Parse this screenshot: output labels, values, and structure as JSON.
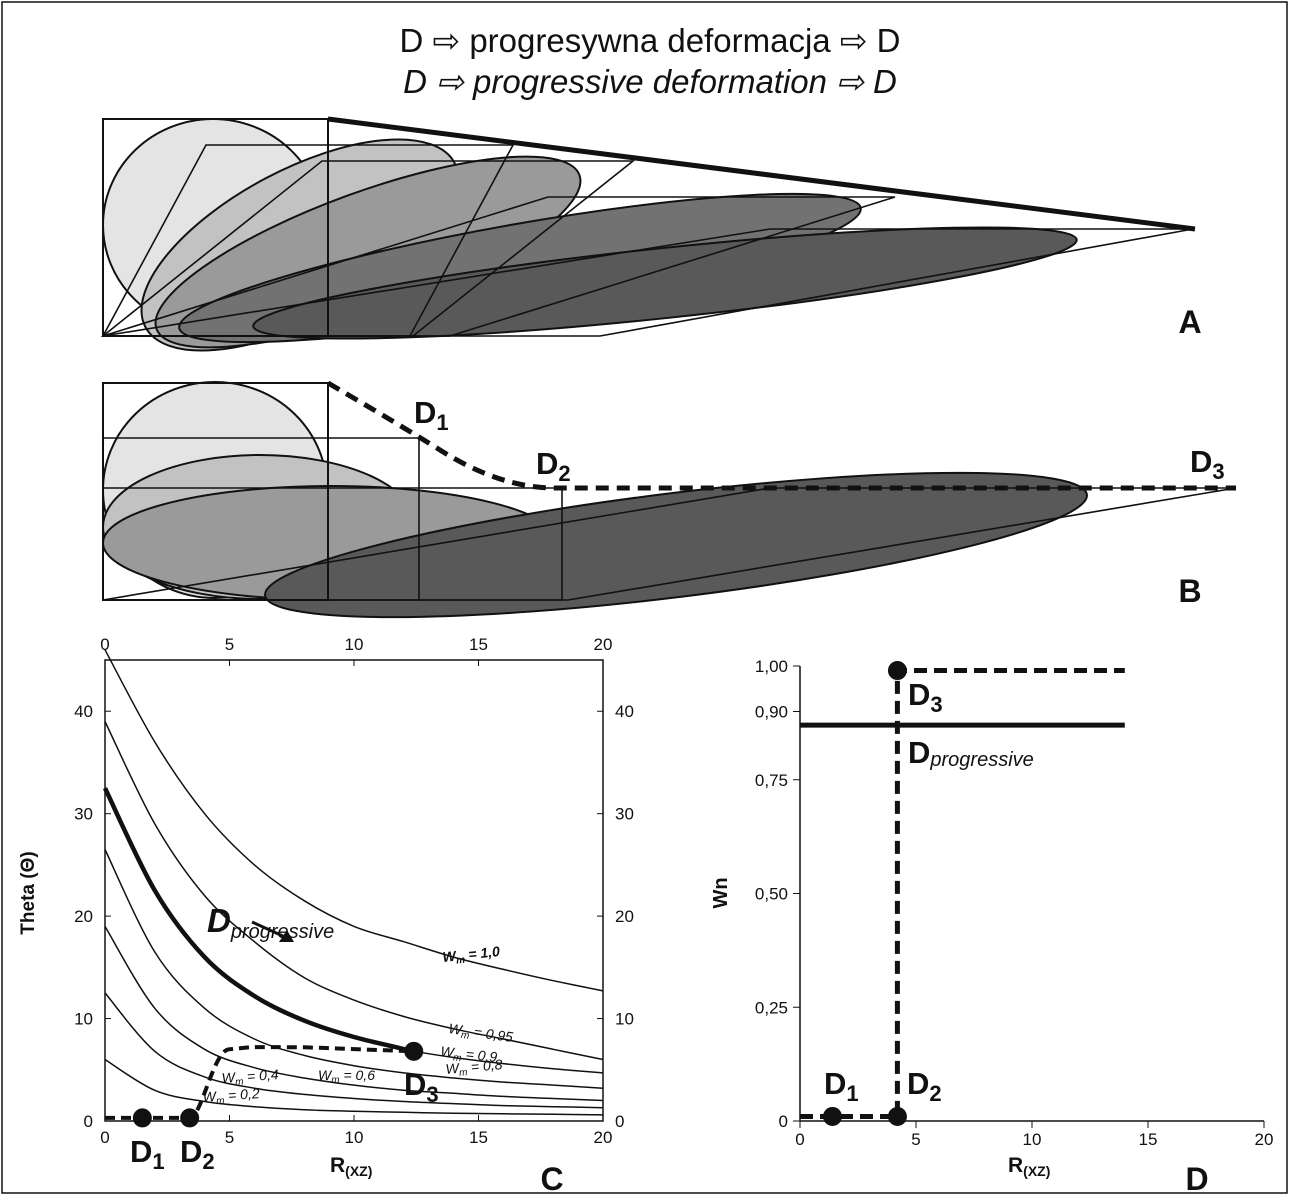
{
  "title": {
    "line1": "D ⇨ progresywna deformacja ⇨ D",
    "line2": "D ⇨ progressive deformation ⇨ D"
  },
  "colors": {
    "ellipse_light": "#e4e4e4",
    "ellipse_mid1": "#c2c2c2",
    "ellipse_mid2": "#9a9a9a",
    "ellipse_dark1": "#727272",
    "ellipse_dark2": "#595959",
    "ink": "#111111"
  },
  "panels": {
    "A": {
      "label": "A"
    },
    "B": {
      "label": "B",
      "points": [
        {
          "main": "D",
          "sub": "1"
        },
        {
          "main": "D",
          "sub": "2"
        },
        {
          "main": "D",
          "sub": "3"
        }
      ]
    },
    "C": {
      "label": "C",
      "ylabel": "Theta (Θ)",
      "xlabel_main": "R",
      "xlabel_sub": "(XZ)",
      "xticks": [
        "0",
        "5",
        "10",
        "15",
        "20"
      ],
      "yticks": [
        "0",
        "10",
        "20",
        "30",
        "40"
      ],
      "curve_labels": [
        {
          "main": "W",
          "sub": "m",
          "rest": " = 1,0"
        },
        {
          "main": "W",
          "sub": "m",
          "rest": " = 0,95"
        },
        {
          "main": "W",
          "sub": "m",
          "rest": " = 0,9"
        },
        {
          "main": "W",
          "sub": "m",
          "rest": " = 0,8"
        },
        {
          "main": "W",
          "sub": "m",
          "rest": " = 0,6"
        },
        {
          "main": "W",
          "sub": "m",
          "rest": " = 0,4"
        },
        {
          "main": "W",
          "sub": "m",
          "rest": " = 0,2"
        }
      ],
      "dprog_main": "D",
      "dprog_sub": "progressive",
      "points": [
        {
          "main": "D",
          "sub": "1"
        },
        {
          "main": "D",
          "sub": "2"
        },
        {
          "main": "D",
          "sub": "3"
        }
      ]
    },
    "D": {
      "label": "D",
      "ylabel": "Wn",
      "xlabel_main": "R",
      "xlabel_sub": "(XZ)",
      "xticks": [
        "0",
        "5",
        "10",
        "15",
        "20"
      ],
      "yticks": [
        "0",
        "0,25",
        "0,50",
        "0,75",
        "0,90",
        "1,00"
      ],
      "points": [
        {
          "main": "D",
          "sub": "1"
        },
        {
          "main": "D",
          "sub": "2"
        },
        {
          "main": "D",
          "sub": "3"
        }
      ],
      "dprog_main": "D",
      "dprog_sub": "progressive"
    }
  },
  "chart_data": [
    {
      "type": "line",
      "panel": "C",
      "xlabel": "R(XZ)",
      "ylabel": "Theta (Θ)",
      "xlim": [
        0,
        20
      ],
      "ylim": [
        0,
        45
      ],
      "series": [
        {
          "name": "Wm = 1,0",
          "x": [
            0,
            2,
            4,
            6,
            8,
            10,
            12,
            14,
            16,
            18,
            20
          ],
          "y": [
            46,
            37,
            30,
            25,
            21.5,
            19,
            17.5,
            16,
            14.8,
            13.7,
            12.7
          ]
        },
        {
          "name": "Wm = 0,95",
          "x": [
            0,
            2,
            4,
            6,
            8,
            10,
            12,
            14,
            16,
            18,
            20
          ],
          "y": [
            39,
            29,
            22,
            17.5,
            14,
            11.8,
            10.2,
            9,
            8,
            7,
            6
          ]
        },
        {
          "name": "Wm = 0,9",
          "x": [
            0,
            2,
            4,
            6,
            8,
            10,
            12,
            14,
            16,
            18,
            20
          ],
          "y": [
            32.5,
            22.5,
            16,
            12.2,
            9.8,
            8.2,
            7,
            6.2,
            5.6,
            5.1,
            4.7
          ]
        },
        {
          "name": "Wm = 0,8",
          "x": [
            0,
            2,
            4,
            6,
            8,
            10,
            12,
            14,
            16,
            18,
            20
          ],
          "y": [
            26.5,
            16.5,
            11,
            8,
            6.4,
            5.4,
            4.7,
            4.2,
            3.8,
            3.5,
            3.2
          ]
        },
        {
          "name": "Wm = 0,6",
          "x": [
            0,
            2,
            4,
            6,
            8,
            10,
            12,
            14,
            16,
            18,
            20
          ],
          "y": [
            19,
            11,
            7,
            5.2,
            4.2,
            3.5,
            3,
            2.7,
            2.4,
            2.2,
            2
          ]
        },
        {
          "name": "Wm = 0,4",
          "x": [
            0,
            2,
            4,
            6,
            8,
            10,
            12,
            14,
            16,
            18,
            20
          ],
          "y": [
            12.5,
            6.8,
            4.3,
            3.2,
            2.6,
            2.2,
            1.9,
            1.7,
            1.5,
            1.4,
            1.3
          ]
        },
        {
          "name": "Wm = 0,2",
          "x": [
            0,
            2,
            4,
            6,
            8,
            10,
            12,
            14,
            16,
            18,
            20
          ],
          "y": [
            6,
            3,
            1.9,
            1.4,
            1.1,
            0.95,
            0.85,
            0.75,
            0.7,
            0.65,
            0.6
          ]
        },
        {
          "name": "Dprogressive",
          "x": [
            0,
            2,
            4,
            6,
            8,
            10,
            12.4
          ],
          "y": [
            32.5,
            22.5,
            16,
            12.2,
            9.8,
            8.2,
            6.8
          ]
        }
      ],
      "path": {
        "x": [
          0,
          1.5,
          3.4,
          5,
          8,
          12.4
        ],
        "y": [
          0.3,
          0.3,
          0.3,
          7,
          7.2,
          6.8
        ]
      },
      "points": [
        {
          "label": "D1",
          "x": 1.5,
          "y": 0.3
        },
        {
          "label": "D2",
          "x": 3.4,
          "y": 0.3
        },
        {
          "label": "D3",
          "x": 12.4,
          "y": 6.8
        }
      ]
    },
    {
      "type": "line",
      "panel": "D",
      "xlabel": "R(XZ)",
      "ylabel": "Wn",
      "xlim": [
        0,
        20
      ],
      "ylim": [
        0,
        1
      ],
      "series": [
        {
          "name": "Dprogressive",
          "x": [
            0,
            14
          ],
          "y": [
            0.87,
            0.87
          ]
        }
      ],
      "path": {
        "x": [
          0,
          1.5,
          4.2,
          4.2,
          14
        ],
        "y": [
          0.01,
          0.01,
          0.01,
          0.99,
          0.99
        ]
      },
      "points": [
        {
          "label": "D1",
          "x": 1.4,
          "y": 0.01
        },
        {
          "label": "D2",
          "x": 4.2,
          "y": 0.01
        },
        {
          "label": "D3",
          "x": 4.2,
          "y": 0.99
        }
      ]
    }
  ]
}
